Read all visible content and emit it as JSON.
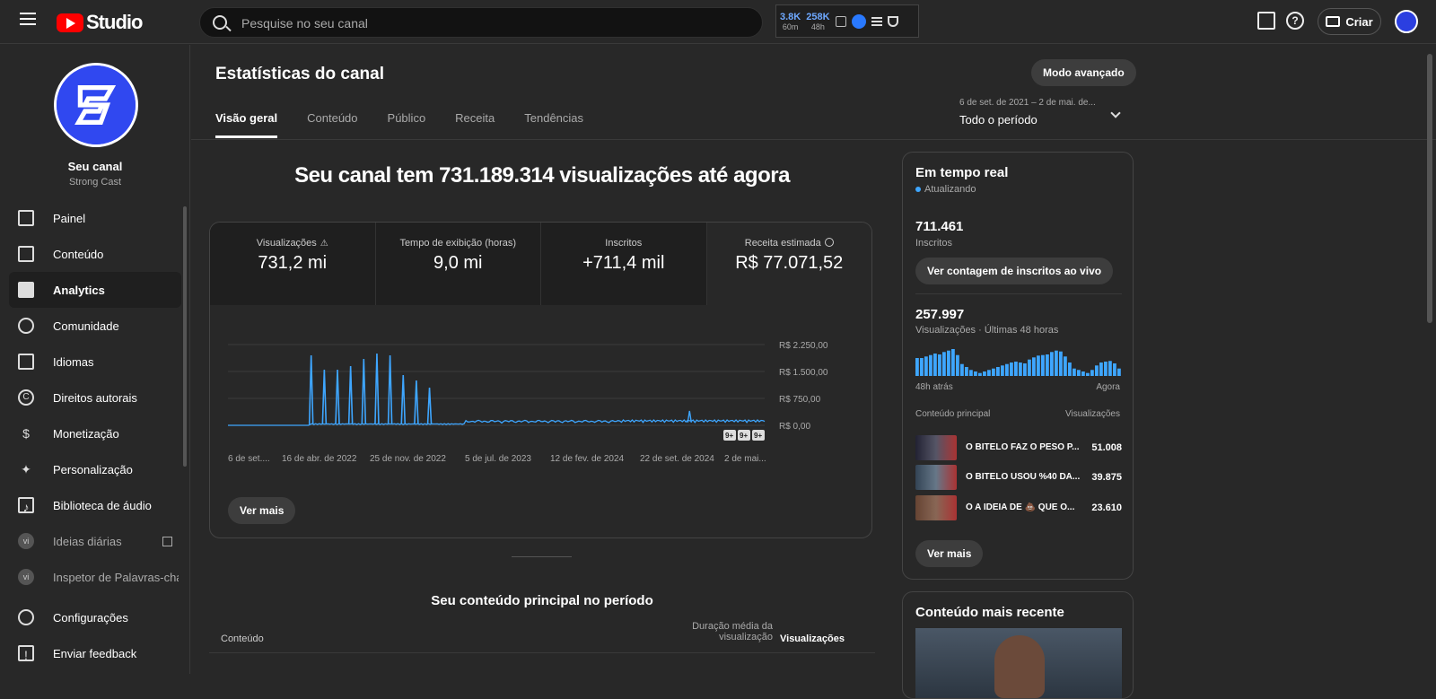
{
  "app": {
    "logo_text": "Studio"
  },
  "search": {
    "placeholder": "Pesquise no seu canal"
  },
  "ext": {
    "s1_value": "3.8K",
    "s1_label": "60m",
    "s2_value": "258K",
    "s2_label": "48h"
  },
  "header": {
    "create_label": "Criar",
    "help_glyph": "?"
  },
  "channel": {
    "name": "Seu canal",
    "handle": "Strong Cast"
  },
  "sidebar": {
    "items": [
      {
        "label": "Painel"
      },
      {
        "label": "Conteúdo"
      },
      {
        "label": "Analytics"
      },
      {
        "label": "Comunidade"
      },
      {
        "label": "Idiomas"
      },
      {
        "label": "Direitos autorais"
      },
      {
        "label": "Monetização"
      },
      {
        "label": "Personalização"
      },
      {
        "label": "Biblioteca de áudio"
      },
      {
        "label": "Ideias diárias"
      },
      {
        "label": "Inspetor de Palavras-chav"
      },
      {
        "label": "Configurações"
      },
      {
        "label": "Enviar feedback"
      }
    ]
  },
  "page": {
    "title": "Estatísticas do canal",
    "advanced_label": "Modo avançado",
    "date_range_small": "6 de set. de 2021 – 2 de mai. de...",
    "date_range": "Todo o período",
    "tabs": [
      "Visão geral",
      "Conteúdo",
      "Público",
      "Receita",
      "Tendências"
    ],
    "headline": "Seu canal tem 731.189.314 visualizações até agora"
  },
  "metrics": [
    {
      "label": "Visualizações",
      "value": "731,2 mi"
    },
    {
      "label": "Tempo de exibição (horas)",
      "value": "9,0 mi"
    },
    {
      "label": "Inscritos",
      "value": "+711,4 mil"
    },
    {
      "label": "Receita estimada",
      "value": "R$ 77.071,52"
    }
  ],
  "chart_data": {
    "type": "line",
    "metric": "Receita estimada",
    "y_ticks": [
      "R$ 2.250,00",
      "R$ 1.500,00",
      "R$ 750,00",
      "R$ 0,00"
    ],
    "ylim": [
      0,
      2250
    ],
    "x_ticks": [
      "6 de set....",
      "16 de abr. de 2022",
      "25 de nov. de 2022",
      "5 de jul. de 2023",
      "12 de fev. de 2024",
      "22 de set. de 2024",
      "2 de mai..."
    ],
    "spikes": [
      1950,
      1550,
      1550,
      1650,
      1850,
      2000,
      1950,
      1400,
      1250,
      1050
    ],
    "badges": [
      "9+",
      "9+",
      "9+"
    ],
    "color": "#3ea6ff"
  },
  "overview": {
    "more_label": "Ver mais"
  },
  "top_content": {
    "title": "Seu conteúdo principal no período",
    "col_content": "Conteúdo",
    "col_duration": "Duração média da visualização",
    "col_views": "Visualizações"
  },
  "realtime": {
    "title": "Em tempo real",
    "status": "Atualizando",
    "subs_value": "711.461",
    "subs_label": "Inscritos",
    "subs_button": "Ver contagem de inscritos ao vivo",
    "views_value": "257.997",
    "views_label": "Visualizações · Últimas 48 horas",
    "axis_left": "48h atrás",
    "axis_right": "Agora",
    "col_left": "Conteúdo principal",
    "col_right": "Visualizações",
    "hourly": [
      60,
      60,
      65,
      70,
      75,
      72,
      80,
      85,
      90,
      70,
      40,
      30,
      20,
      15,
      10,
      15,
      20,
      25,
      30,
      35,
      40,
      45,
      48,
      45,
      42,
      55,
      62,
      68,
      70,
      72,
      80,
      85,
      82,
      65,
      45,
      25,
      20,
      15,
      10,
      20,
      35,
      45,
      48,
      50,
      42,
      25
    ],
    "rows": [
      {
        "title": "O BITELO FAZ O PESO P...",
        "views": "51.008"
      },
      {
        "title": "O BITELO USOU %40 DA...",
        "views": "39.875"
      },
      {
        "title": "Ó A IDEIA DE 💩 QUE O...",
        "views": "23.610"
      }
    ],
    "more_label": "Ver mais"
  },
  "recent": {
    "title": "Conteúdo mais recente"
  }
}
